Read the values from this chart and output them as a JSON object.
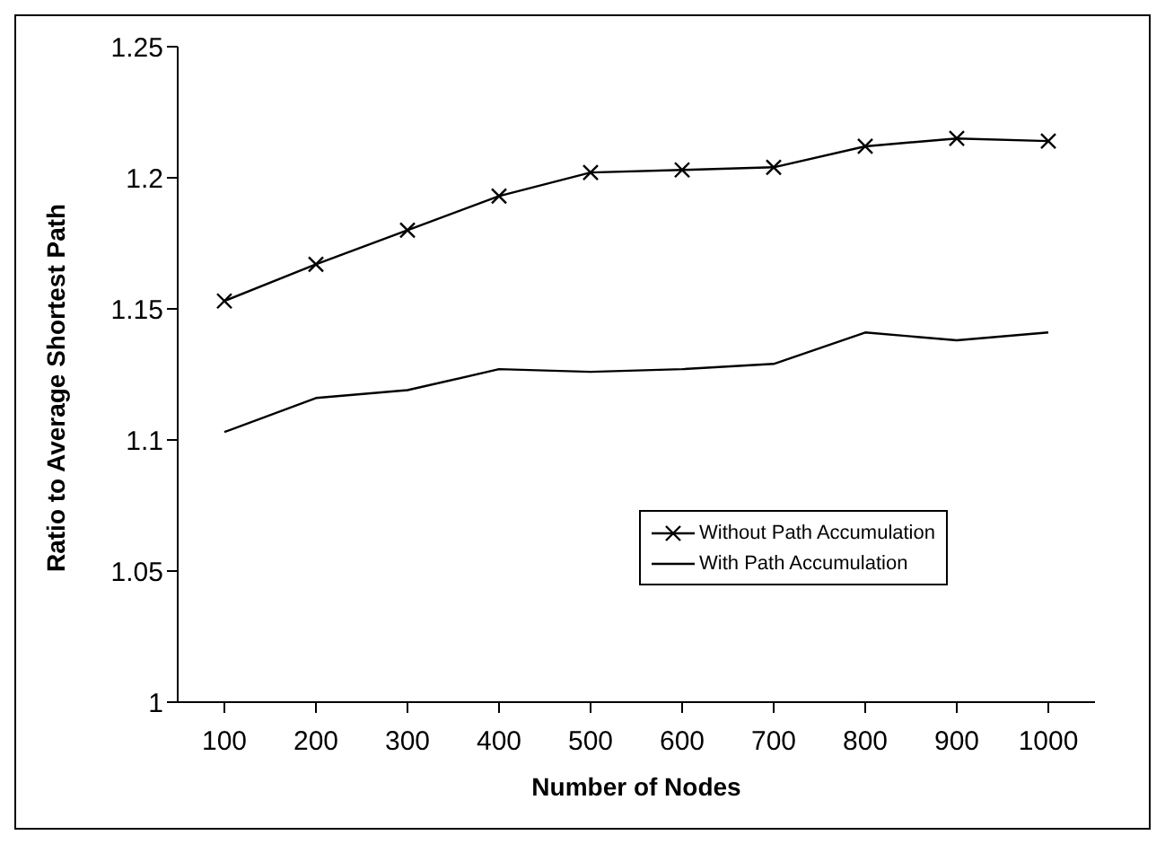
{
  "chart_data": {
    "type": "line",
    "xlabel": "Number of Nodes",
    "ylabel": "Ratio to Average Shortest Path",
    "categories": [
      "100",
      "200",
      "300",
      "400",
      "500",
      "600",
      "700",
      "800",
      "900",
      "1000"
    ],
    "series": [
      {
        "name": "Without Path Accumulation",
        "color": "#000000",
        "marker": "cross",
        "values": [
          1.153,
          1.167,
          1.18,
          1.193,
          1.202,
          1.203,
          1.204,
          1.212,
          1.215,
          1.214
        ]
      },
      {
        "name": "With Path Accumulation",
        "color": "#000000",
        "marker": "none",
        "values": [
          1.103,
          1.116,
          1.119,
          1.127,
          1.126,
          1.127,
          1.129,
          1.141,
          1.138,
          1.141
        ]
      }
    ],
    "ylim": [
      1,
      1.25
    ],
    "yticks": [
      1,
      1.05,
      1.1,
      1.15,
      1.2,
      1.25
    ],
    "grid": false,
    "legend": "bottom right",
    "line_style": "solid"
  }
}
